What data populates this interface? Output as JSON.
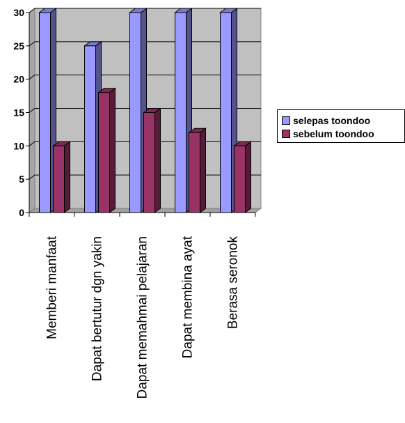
{
  "chart_data": {
    "type": "bar",
    "categories": [
      "Memberi manfaat",
      "Dapat bertutur dgn yakin",
      "Dapat memahmai pelajaran",
      "Dapat membina ayat",
      "Berasa seronok"
    ],
    "series": [
      {
        "name": "selepas toondoo",
        "values": [
          30,
          25,
          30,
          30,
          30
        ],
        "color": "#9999FF"
      },
      {
        "name": "sebelum toondoo",
        "values": [
          10,
          18,
          15,
          12,
          10
        ],
        "color": "#993366"
      }
    ],
    "ylim": [
      0,
      30
    ],
    "yticks": [
      0,
      5,
      10,
      15,
      20,
      25,
      30
    ],
    "grid": true,
    "legend_position": "right",
    "style": "3d-clustered-column"
  }
}
